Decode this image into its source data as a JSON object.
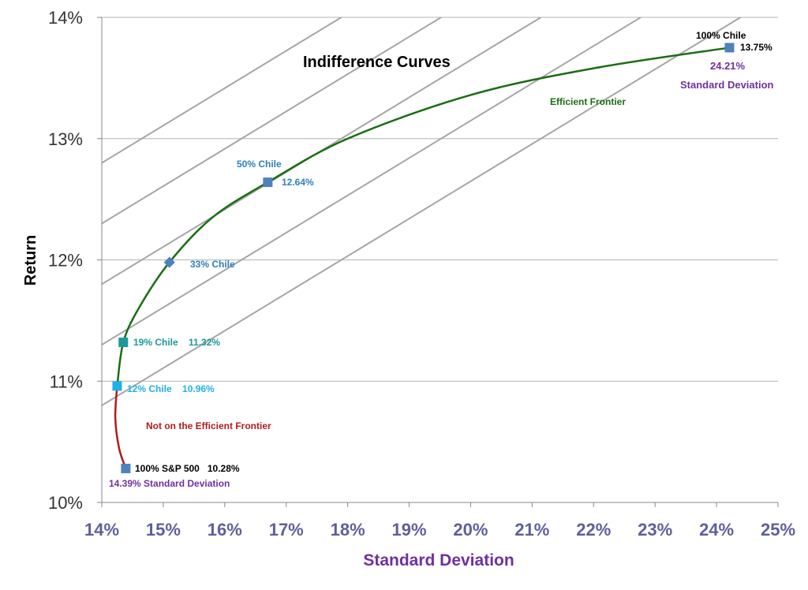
{
  "chart_data": {
    "type": "line",
    "xlabel": "Standard Deviation",
    "ylabel": "Return",
    "xlim": [
      14,
      25
    ],
    "ylim": [
      10,
      14
    ],
    "x_ticks": [
      "14%",
      "15%",
      "16%",
      "17%",
      "18%",
      "19%",
      "20%",
      "21%",
      "22%",
      "23%",
      "24%",
      "25%"
    ],
    "y_ticks": [
      "10%",
      "11%",
      "12%",
      "13%",
      "14%"
    ],
    "grid": "horizontal",
    "colors": {
      "frontier": "#1a6e12",
      "inefficient": "#b01c1c",
      "indifference": "#a6a6a6",
      "marker": "#4f81bd",
      "axis_ticks_x": "#5f5f9c",
      "xlabel": "#7030a0"
    },
    "indifference_curves": {
      "label": "Indifference Curves",
      "slope": 0.308,
      "intercepts_at_14": [
        12.8,
        12.3,
        11.8,
        11.3,
        10.8
      ]
    },
    "efficient_frontier": {
      "label": "Efficient Frontier",
      "points": [
        [
          14.25,
          10.96
        ],
        [
          14.35,
          11.32
        ],
        [
          14.6,
          11.6
        ],
        [
          15.1,
          11.98
        ],
        [
          15.8,
          12.35
        ],
        [
          16.7,
          12.64
        ],
        [
          18,
          13.0
        ],
        [
          20,
          13.36
        ],
        [
          22,
          13.58
        ],
        [
          24.21,
          13.75
        ]
      ]
    },
    "inefficient_segment": {
      "label": "Not on the Efficient Frontier",
      "points": [
        [
          14.25,
          10.96
        ],
        [
          14.22,
          10.7
        ],
        [
          14.28,
          10.45
        ],
        [
          14.39,
          10.28
        ]
      ]
    },
    "portfolios": [
      {
        "name": "100% S&P 500",
        "x": 14.39,
        "y": 10.28,
        "marker": "square",
        "color": "#4f81bd",
        "label": "100% S&P 500   10.28%",
        "sublabel": "14.39% Standard Deviation"
      },
      {
        "name": "12% Chile",
        "x": 14.25,
        "y": 10.96,
        "marker": "square",
        "color": "#1fb0ea",
        "label": "12% Chile    10.96%"
      },
      {
        "name": "19% Chile",
        "x": 14.35,
        "y": 11.32,
        "marker": "square",
        "color": "#1a9a9a",
        "label": "19% Chile    11.32%"
      },
      {
        "name": "33% Chile",
        "x": 15.1,
        "y": 11.98,
        "marker": "diamond",
        "color": "#4f81bd",
        "label": "33% Chile"
      },
      {
        "name": "50% Chile",
        "x": 16.7,
        "y": 12.64,
        "marker": "square",
        "color": "#4f81bd",
        "label": "50% Chile",
        "value_label": "12.64%"
      },
      {
        "name": "100% Chile",
        "x": 24.21,
        "y": 13.75,
        "marker": "square",
        "color": "#4f81bd",
        "label": "100% Chile",
        "value_label": "13.75%",
        "sublabel": "24.21%",
        "sublabel2": "Standard Deviation"
      }
    ]
  }
}
